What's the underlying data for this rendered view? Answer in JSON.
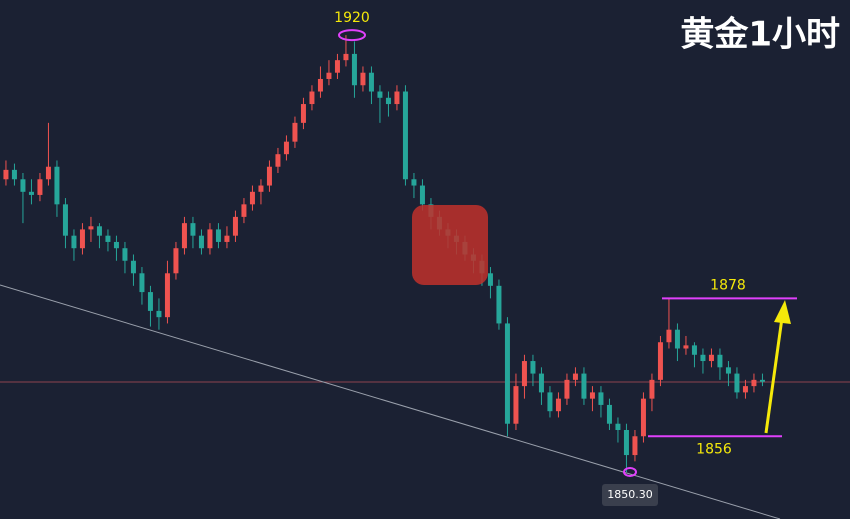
{
  "chart_data": {
    "type": "candlestick",
    "title": "黄金1小时",
    "up_color": "#ef5350",
    "down_color": "#26a69a",
    "ylim": [
      1842.8,
      1925.6
    ],
    "open": [
      1897,
      1898.5,
      1897,
      1895,
      1894.5,
      1897,
      1899,
      1893,
      1888,
      1886,
      1889,
      1889.5,
      1888,
      1887,
      1886,
      1884,
      1882,
      1879,
      1876,
      1875,
      1882,
      1886,
      1890,
      1888,
      1886,
      1889,
      1887,
      1888,
      1891,
      1893,
      1895,
      1896,
      1899,
      1901,
      1903,
      1906,
      1909,
      1911,
      1913,
      1914,
      1916,
      1917,
      1912,
      1914,
      1911,
      1910,
      1909,
      1911,
      1897,
      1896,
      1893,
      1891,
      1889,
      1888,
      1887,
      1885,
      1884,
      1882,
      1880,
      1874,
      1858,
      1864,
      1868,
      1866,
      1863,
      1860,
      1862,
      1865,
      1866,
      1862,
      1863,
      1861,
      1858,
      1857,
      1853,
      1856,
      1862,
      1865,
      1871,
      1873,
      1870,
      1870.5,
      1869,
      1868,
      1869,
      1867,
      1866,
      1863,
      1864,
      1865
    ],
    "high": [
      1900,
      1899.5,
      1898,
      1897,
      1898,
      1906,
      1900,
      1894,
      1889,
      1890,
      1891,
      1890,
      1889,
      1888,
      1887,
      1885,
      1883,
      1880,
      1878,
      1884,
      1887,
      1891,
      1891,
      1889,
      1890,
      1890,
      1889.5,
      1892,
      1894,
      1896,
      1897,
      1900,
      1902,
      1904,
      1907,
      1910,
      1912,
      1915,
      1916,
      1917,
      1920,
      1919,
      1915,
      1915,
      1912,
      1911,
      1912,
      1912,
      1898,
      1897,
      1894,
      1892,
      1890,
      1889,
      1888,
      1886,
      1885,
      1883,
      1881,
      1875,
      1866,
      1869,
      1869,
      1867,
      1864,
      1863,
      1866,
      1867,
      1867,
      1864,
      1864,
      1862,
      1859,
      1858,
      1857,
      1863,
      1866,
      1872,
      1878,
      1874,
      1872,
      1871,
      1870,
      1870,
      1870,
      1868,
      1867,
      1865,
      1866,
      1866
    ],
    "low": [
      1896,
      1896,
      1890,
      1893,
      1893.5,
      1896,
      1891,
      1886,
      1884,
      1885,
      1887,
      1886,
      1885.5,
      1884,
      1882,
      1880,
      1877,
      1873.5,
      1873,
      1874,
      1881,
      1885,
      1886,
      1885,
      1885,
      1886,
      1886,
      1887,
      1890,
      1892,
      1893,
      1895,
      1898,
      1900,
      1902,
      1905,
      1908,
      1910,
      1912,
      1913,
      1915,
      1910,
      1911,
      1909,
      1906,
      1907,
      1908,
      1896,
      1894,
      1892,
      1889,
      1888,
      1886,
      1885,
      1884,
      1882,
      1880,
      1878,
      1873,
      1856,
      1857,
      1862,
      1864,
      1861,
      1859,
      1859,
      1861,
      1864,
      1861,
      1860,
      1859,
      1857,
      1855,
      1850.3,
      1852,
      1855,
      1860,
      1864,
      1870,
      1868,
      1869,
      1867,
      1866,
      1867,
      1865,
      1864,
      1862,
      1862,
      1863,
      1864
    ],
    "close": [
      1898.5,
      1897,
      1895,
      1894.5,
      1897,
      1899,
      1893,
      1888,
      1886,
      1889,
      1889.5,
      1888,
      1887,
      1886,
      1884,
      1882,
      1879,
      1876,
      1875,
      1882,
      1886,
      1890,
      1888,
      1886,
      1889,
      1887,
      1888,
      1891,
      1893,
      1895,
      1896,
      1899,
      1901,
      1903,
      1906,
      1909,
      1911,
      1913,
      1914,
      1916,
      1917,
      1912,
      1914,
      1911,
      1910,
      1909,
      1911,
      1897,
      1896,
      1893,
      1891,
      1889,
      1888,
      1887,
      1885,
      1884,
      1882,
      1880,
      1874,
      1858,
      1864,
      1868,
      1866,
      1863,
      1860,
      1862,
      1865,
      1866,
      1862,
      1863,
      1861,
      1858,
      1857,
      1853,
      1856,
      1862,
      1865,
      1871,
      1873,
      1870,
      1870.5,
      1869,
      1868,
      1869,
      1867,
      1866,
      1863,
      1864,
      1865,
      1864.7
    ],
    "high_label": 1920,
    "resistance": 1878,
    "support": 1856,
    "low_label": {
      "value": 1850.3,
      "label": "1850.30"
    }
  }
}
